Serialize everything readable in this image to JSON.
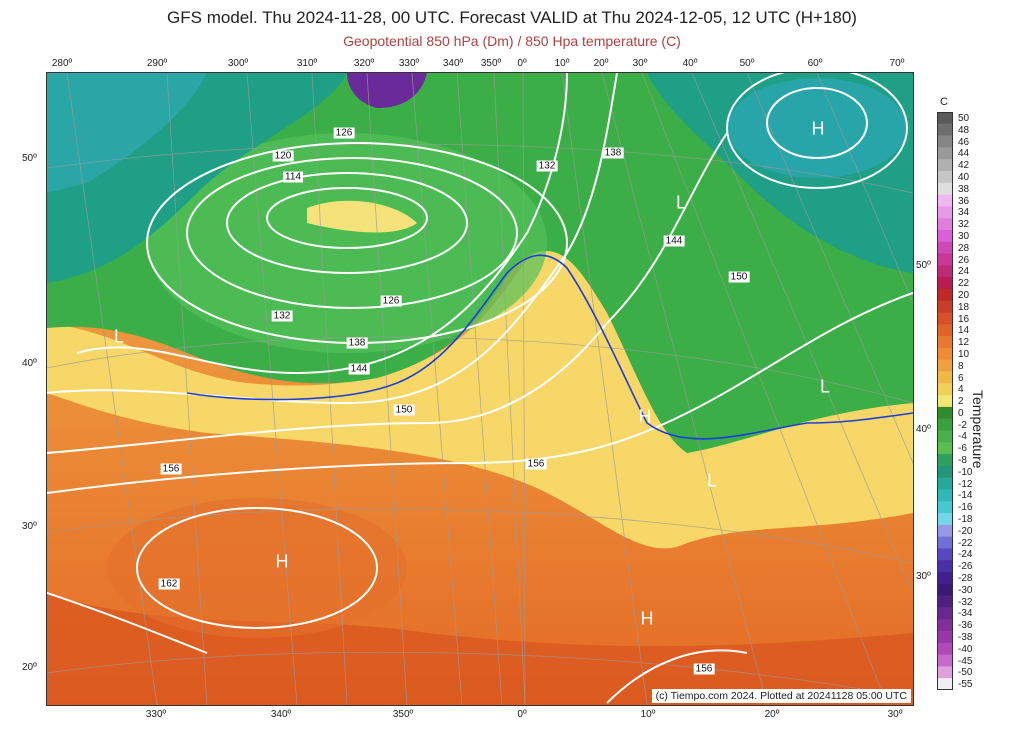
{
  "title": "GFS model. Thu 2024-11-28, 00 UTC. Forecast VALID at Thu 2024-12-05, 12 UTC (H+180)",
  "subtitle": "Geopotential 850 hPa (Dm) / 850 Hpa temperature (C)",
  "credit": "(c) Tiempo.com 2024. Plotted at 20241128 05:00 UTC",
  "top_longitudes": [
    "280º",
    "290º",
    "300º",
    "310º",
    "320º",
    "330º",
    "340º",
    "350º",
    "0º",
    "10º",
    "20º",
    "30º",
    "40º",
    "50º",
    "60º",
    "70º"
  ],
  "bottom_longitudes": [
    "330º",
    "340º",
    "350º",
    "0º",
    "10º",
    "20º",
    "30º"
  ],
  "left_latitudes": [
    "50º",
    "40º",
    "30º",
    "20º"
  ],
  "right_latitudes": [
    "50º",
    "40º",
    "30º"
  ],
  "pressure_centers": [
    {
      "label": "H",
      "role": "high"
    },
    {
      "label": "H",
      "role": "high"
    },
    {
      "label": "H",
      "role": "high"
    },
    {
      "label": "H",
      "role": "high"
    },
    {
      "label": "L",
      "role": "low"
    },
    {
      "label": "L",
      "role": "low"
    },
    {
      "label": "L",
      "role": "low"
    },
    {
      "label": "L",
      "role": "low"
    }
  ],
  "contour_labels": [
    "114",
    "120",
    "126",
    "126",
    "132",
    "132",
    "138",
    "138",
    "144",
    "144",
    "150",
    "150",
    "156",
    "156",
    "156",
    "162"
  ],
  "legend": {
    "unit": "C",
    "title": "Temperature",
    "labels": [
      "50",
      "48",
      "46",
      "44",
      "42",
      "40",
      "38",
      "36",
      "34",
      "32",
      "30",
      "28",
      "26",
      "24",
      "22",
      "20",
      "18",
      "16",
      "14",
      "12",
      "10",
      "8",
      "6",
      "4",
      "2",
      "0",
      "-2",
      "-4",
      "-6",
      "-8",
      "-10",
      "-12",
      "-14",
      "-16",
      "-18",
      "-20",
      "-22",
      "-24",
      "-26",
      "-28",
      "-30",
      "-32",
      "-34",
      "-36",
      "-38",
      "-40",
      "-45",
      "-50",
      "-55"
    ],
    "colors": [
      "#5a5a5a",
      "#6e6e6e",
      "#858585",
      "#9a9a9a",
      "#b0b0b0",
      "#c6c6c6",
      "#dedede",
      "#f0b8f0",
      "#e89ae8",
      "#e07ee0",
      "#d860d8",
      "#d048b8",
      "#c83898",
      "#c02878",
      "#b81c50",
      "#c02828",
      "#c83c28",
      "#d85028",
      "#e06428",
      "#e87830",
      "#f08c38",
      "#f0a040",
      "#f0b848",
      "#f0d058",
      "#f0e870",
      "#2e8b2e",
      "#3aa03a",
      "#48b048",
      "#58be50",
      "#30a060",
      "#209878",
      "#28a898",
      "#30b8b8",
      "#48c8d0",
      "#70d8e8",
      "#9898e8",
      "#7070d8",
      "#5848c0",
      "#4830a8",
      "#402090",
      "#3a1878",
      "#502080",
      "#682890",
      "#803098",
      "#9838a8",
      "#b048b8",
      "#c868c8",
      "#e0a0e0",
      "#f0f0f0"
    ]
  }
}
